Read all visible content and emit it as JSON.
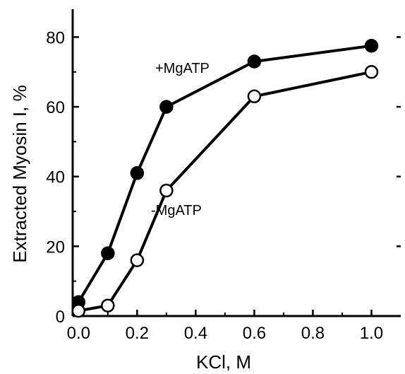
{
  "chart_data": {
    "type": "line",
    "xlabel": "KCl, M",
    "ylabel": "Extracted Myosin I, %",
    "xlim": [
      -0.02,
      1.1
    ],
    "ylim": [
      0,
      88
    ],
    "xticks": [
      "0.0",
      "0.2",
      "0.4",
      "0.6",
      "0.8",
      "1.0"
    ],
    "yticks": [
      "0",
      "20",
      "40",
      "60",
      "80"
    ],
    "grid": false,
    "legend": "inline labels",
    "series": [
      {
        "name": "+MgATP",
        "marker": "filled-circle",
        "color": "#000000",
        "x": [
          0.0,
          0.1,
          0.2,
          0.3,
          0.6,
          1.0
        ],
        "y": [
          4,
          18,
          41,
          60,
          73,
          77.5
        ]
      },
      {
        "name": "-MgATP",
        "marker": "open-circle",
        "color": "#000000",
        "x": [
          0.0,
          0.1,
          0.2,
          0.3,
          0.6,
          1.0
        ],
        "y": [
          1.5,
          3,
          16,
          36,
          63,
          70
        ]
      }
    ]
  }
}
